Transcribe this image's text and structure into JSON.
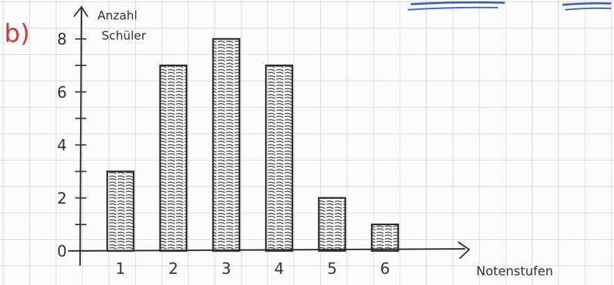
{
  "part_label": "b)",
  "chart_data": {
    "type": "bar",
    "categories": [
      "1",
      "2",
      "3",
      "4",
      "5",
      "6"
    ],
    "values": [
      3,
      7,
      8,
      7,
      2,
      1
    ],
    "ylabel_line1": "Anzahl",
    "ylabel_line2": "Schüler",
    "xlabel": "Notenstufen",
    "ylim": [
      0,
      8
    ],
    "yticks": [
      "0",
      "2",
      "4",
      "6",
      "8"
    ],
    "ytick_values": [
      0,
      2,
      4,
      6,
      8
    ],
    "grid": true,
    "bar_fill": "hatched",
    "colors": {
      "ink": "#333333",
      "part_label": "#d23a3a",
      "blue_marks": "#3a5fd0"
    }
  }
}
